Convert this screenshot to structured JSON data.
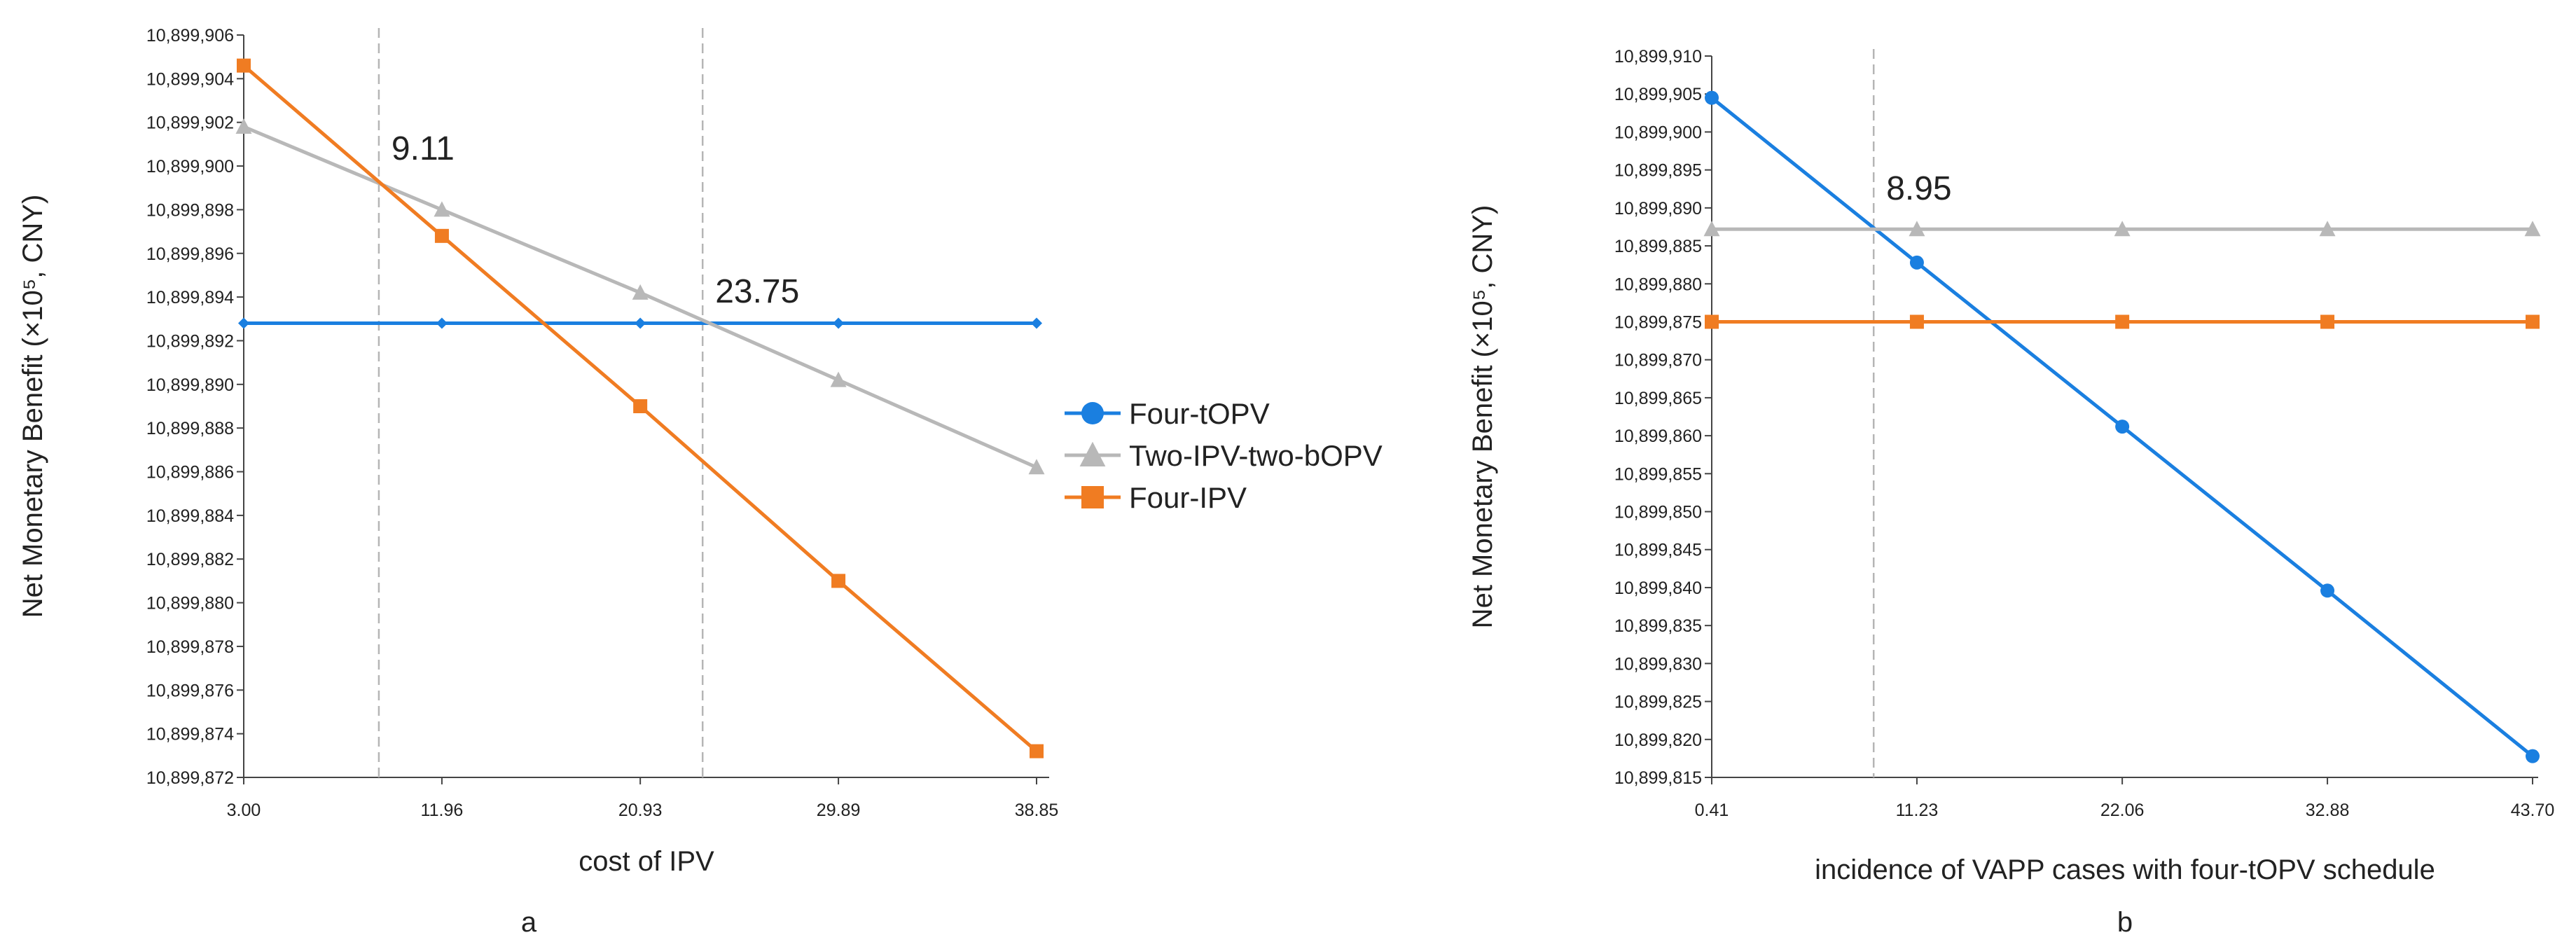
{
  "chart_data": [
    {
      "type": "line",
      "panel_label": "a",
      "xlabel": "cost of IPV",
      "ylabel": "Net Monetary Benefit (×10⁵, CNY)",
      "x": [
        3.0,
        11.96,
        20.93,
        29.89,
        38.85
      ],
      "x_tick_labels": [
        "3.00",
        "11.96",
        "20.93",
        "29.89",
        "38.85"
      ],
      "ylim": [
        10899872,
        10899906
      ],
      "y_tick_labels": [
        "10,899,872",
        "10,899,874",
        "10,899,876",
        "10,899,878",
        "10,899,880",
        "10,899,882",
        "10,899,884",
        "10,899,886",
        "10,899,888",
        "10,899,890",
        "10,899,892",
        "10,899,894",
        "10,899,896",
        "10,899,898",
        "10,899,900",
        "10,899,902",
        "10,899,904",
        "10,899,906"
      ],
      "series": [
        {
          "name": "Four-tOPV",
          "color": "#1a7fe0",
          "marker": "diamond",
          "values": [
            10899892.8,
            10899892.8,
            10899892.8,
            10899892.8,
            10899892.8
          ]
        },
        {
          "name": "Two-IPV-two-bOPV",
          "color": "#b8b8b8",
          "marker": "triangle",
          "values": [
            10899901.8,
            10899898.0,
            10899894.2,
            10899890.2,
            10899886.2
          ]
        },
        {
          "name": "Four-IPV",
          "color": "#f07c22",
          "marker": "square",
          "values": [
            10899904.6,
            10899896.8,
            10899889.0,
            10899881.0,
            10899873.2
          ]
        }
      ],
      "vlines": [
        {
          "x": 9.11,
          "label": "9.11"
        },
        {
          "x": 23.75,
          "label": "23.75"
        }
      ],
      "legend": {
        "position": "right",
        "entries": [
          "Four-tOPV",
          "Two-IPV-two-bOPV",
          "Four-IPV"
        ]
      }
    },
    {
      "type": "line",
      "panel_label": "b",
      "xlabel": "incidence of VAPP cases with four-tOPV schedule",
      "ylabel": "Net Monetary Benefit (×10⁵, CNY)",
      "x": [
        0.41,
        11.23,
        22.06,
        32.88,
        43.7
      ],
      "x_tick_labels": [
        "0.41",
        "11.23",
        "22.06",
        "32.88",
        "43.70"
      ],
      "ylim": [
        10899815,
        10899910
      ],
      "y_tick_labels": [
        "10,899,815",
        "10,899,820",
        "10,899,825",
        "10,899,830",
        "10,899,835",
        "10,899,840",
        "10,899,845",
        "10,899,850",
        "10,899,855",
        "10,899,860",
        "10,899,865",
        "10,899,870",
        "10,899,875",
        "10,899,880",
        "10,899,885",
        "10,899,890",
        "10,899,895",
        "10,899,900",
        "10,899,905",
        "10,899,910"
      ],
      "series": [
        {
          "name": "Four-tOPV",
          "color": "#1a7fe0",
          "marker": "circle",
          "values": [
            10899904.5,
            10899882.8,
            10899861.2,
            10899839.6,
            10899817.8
          ]
        },
        {
          "name": "Two-IPV-two-bOPV",
          "color": "#b8b8b8",
          "marker": "triangle",
          "values": [
            10899887.2,
            10899887.2,
            10899887.2,
            10899887.2,
            10899887.2
          ]
        },
        {
          "name": "Four-IPV",
          "color": "#f07c22",
          "marker": "square",
          "values": [
            10899875.0,
            10899875.0,
            10899875.0,
            10899875.0,
            10899875.0
          ]
        }
      ],
      "vlines": [
        {
          "x": 8.95,
          "label": "8.95"
        }
      ]
    }
  ]
}
